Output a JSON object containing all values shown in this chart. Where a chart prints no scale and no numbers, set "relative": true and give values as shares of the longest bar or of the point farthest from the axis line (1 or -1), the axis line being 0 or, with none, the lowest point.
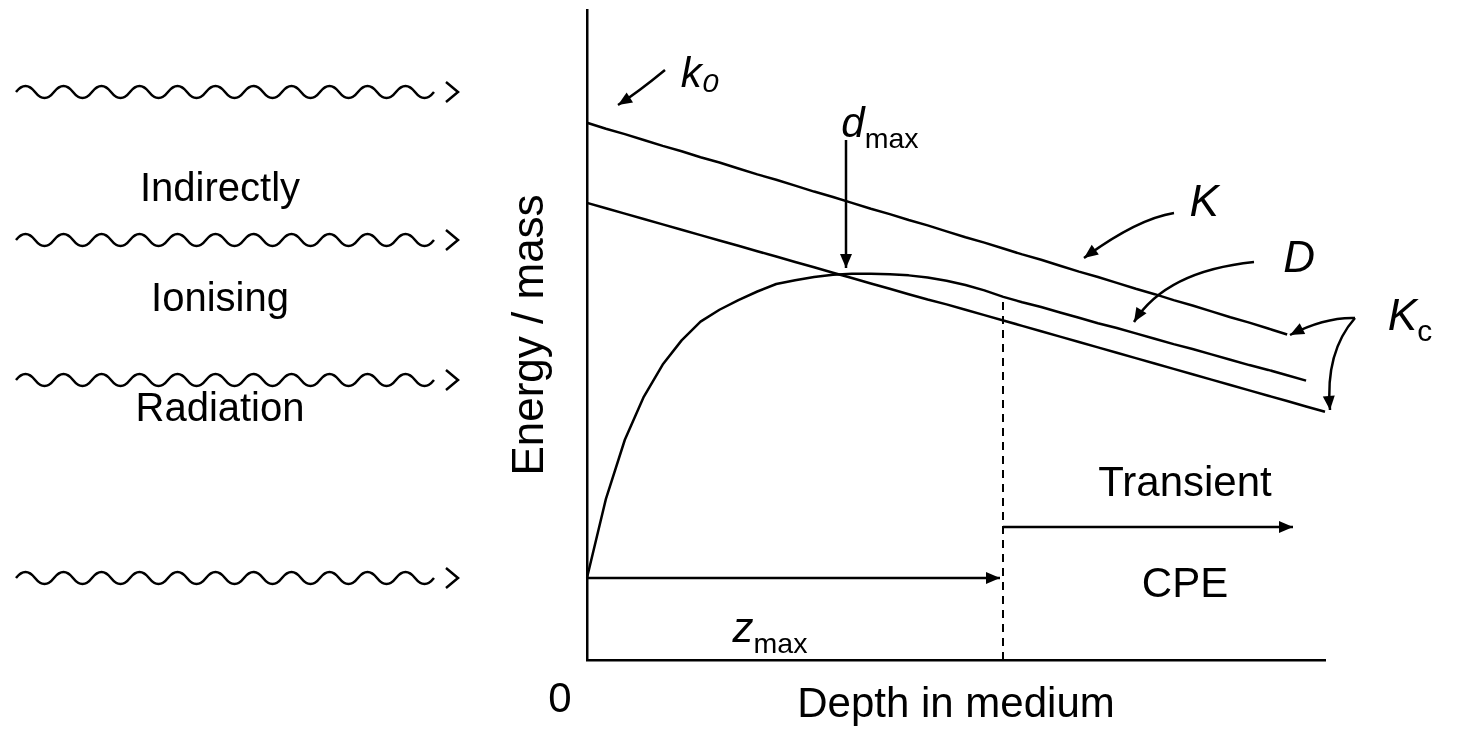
{
  "chart_data": {
    "type": "line",
    "relative": true,
    "xlabel": "Depth in medium",
    "ylabel": "Energy / mass",
    "marker": "none",
    "line_style": "solid",
    "categories": [
      null,
      null,
      null,
      null,
      null,
      null,
      null,
      null,
      null,
      null,
      null,
      null,
      null,
      null,
      null,
      null,
      null,
      null,
      null,
      null,
      null,
      null,
      null,
      null,
      null,
      null,
      null,
      null,
      null,
      null,
      null,
      null,
      null,
      null,
      null,
      null,
      null,
      null,
      null,
      null
    ],
    "series": [
      {
        "name": "K",
        "color": "#000000",
        "values": [
          1.0,
          0.989,
          0.979,
          0.968,
          0.957,
          0.947,
          0.936,
          0.926,
          0.915,
          0.904,
          0.894,
          0.883,
          0.872,
          0.862,
          0.851,
          0.84,
          0.83,
          0.819,
          0.809,
          0.798,
          0.787,
          0.777,
          0.766,
          0.755,
          0.745,
          0.734,
          0.723,
          0.713,
          0.702,
          0.691,
          0.681,
          0.67,
          0.66,
          0.649,
          0.638,
          0.628,
          0.617,
          0.606,
          null,
          null
        ]
      },
      {
        "name": "D",
        "color": "#000000",
        "values": [
          0.153,
          0.3,
          0.41,
          0.49,
          0.55,
          0.595,
          0.63,
          0.652,
          0.67,
          0.686,
          0.7,
          0.707,
          0.713,
          0.717,
          0.719,
          0.719,
          0.718,
          0.716,
          0.712,
          0.706,
          0.698,
          0.688,
          0.676,
          0.666,
          0.657,
          0.647,
          0.637,
          0.627,
          0.618,
          0.608,
          0.598,
          0.588,
          0.579,
          0.569,
          0.559,
          0.549,
          0.54,
          0.53,
          0.52,
          null
        ]
      },
      {
        "name": "K$_{c}$",
        "color": "#000000",
        "values": [
          0.851,
          0.841,
          0.831,
          0.821,
          0.811,
          0.801,
          0.791,
          0.781,
          0.771,
          0.761,
          0.751,
          0.741,
          0.731,
          0.721,
          0.711,
          0.701,
          0.691,
          0.681,
          0.671,
          0.662,
          0.652,
          0.642,
          0.632,
          0.622,
          0.612,
          0.602,
          0.592,
          0.582,
          0.572,
          0.562,
          0.552,
          0.542,
          0.532,
          0.522,
          0.512,
          0.502,
          0.492,
          0.482,
          0.472,
          0.462
        ]
      }
    ],
    "annotations": [
      "Indirectly",
      "Ionising",
      "Radiation",
      "k₀",
      "d$_{max}$",
      "z$_{max}$",
      "Transient",
      "CPE",
      "0"
    ]
  }
}
